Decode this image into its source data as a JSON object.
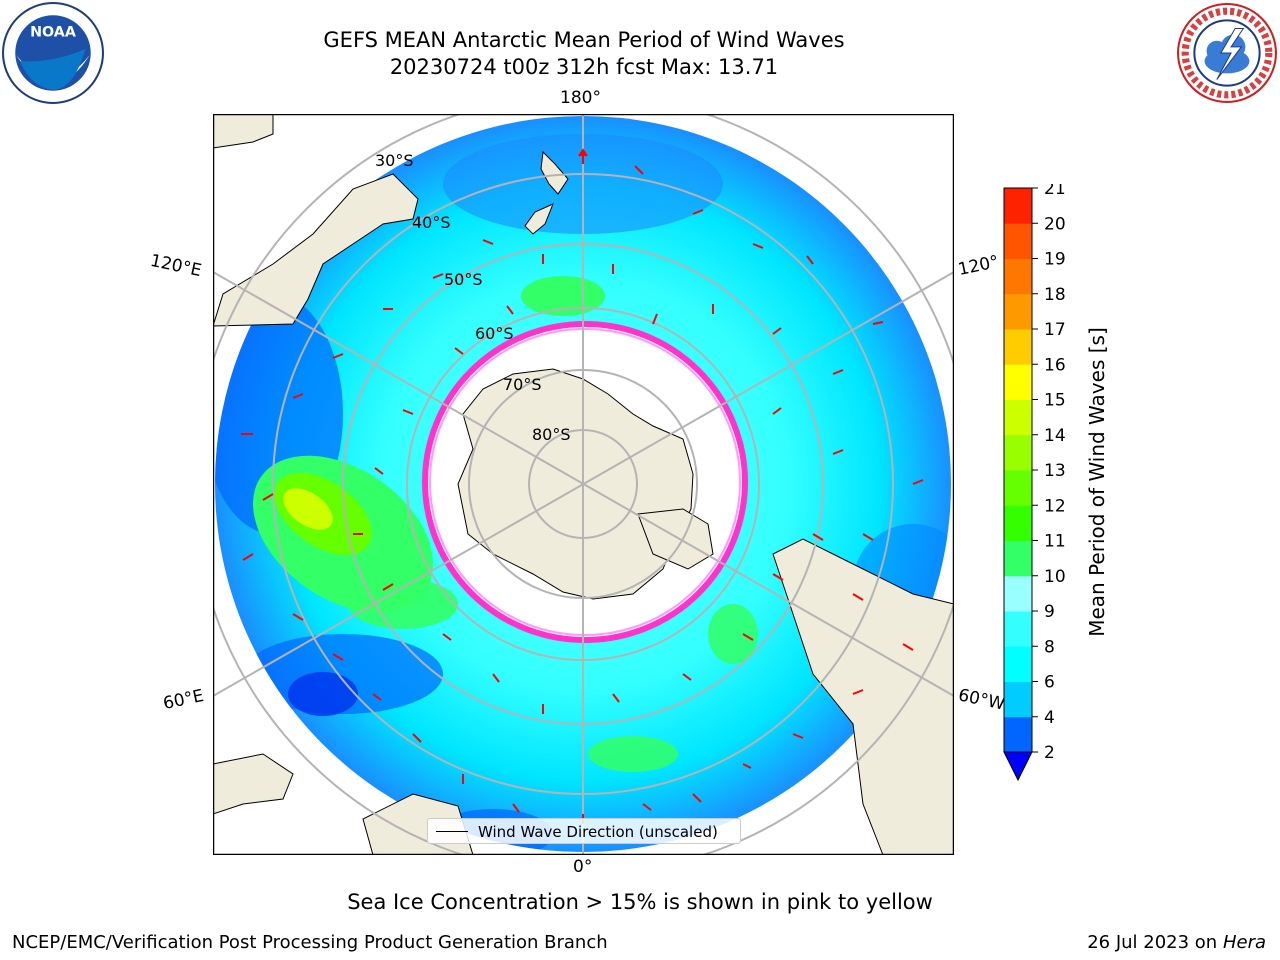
{
  "title": {
    "line1": "GEFS MEAN Antarctic Mean Period of Wind Waves",
    "line2": "20230724 t00z 312h fcst   Max: 13.71"
  },
  "map": {
    "projection": "south-polar-stereographic",
    "meridian_labels": {
      "top": "180°",
      "upper_left": "120°E",
      "upper_right": "120°",
      "lower_left": "60°E",
      "lower_right": "60°W",
      "bottom": "0°"
    },
    "parallel_labels": [
      "30°S",
      "40°S",
      "50°S",
      "60°S",
      "70°S",
      "80°S"
    ],
    "legend_label": "Wind Wave Direction (unscaled)",
    "colors": {
      "land": "#efecdc",
      "sea_ice_no_data": "#ffffff",
      "sea_ice_edge": "#ff33cc",
      "arrows": "#ff0000",
      "gridlines": "#b4b4b4"
    }
  },
  "colorbar": {
    "label": "Mean Period of Wind Waves [s]",
    "ticks": [
      "2",
      "4",
      "6",
      "8",
      "9",
      "10",
      "11",
      "12",
      "13",
      "14",
      "15",
      "16",
      "17",
      "18",
      "19",
      "20",
      "21"
    ],
    "colors": [
      "#0066ff",
      "#00ccff",
      "#00ffff",
      "#33ffff",
      "#99ffff",
      "#33ff66",
      "#33ff00",
      "#66ff00",
      "#99ff00",
      "#ccff00",
      "#ffff00",
      "#ffcc00",
      "#ff9900",
      "#ff7700",
      "#ff5500",
      "#ff2200"
    ],
    "extend_min_color": "#0000ff"
  },
  "subtitle": "Sea Ice Concentration > 15% is shown in pink to yellow",
  "footer": {
    "left": "NCEP/EMC/Verification Post Processing Product Generation Branch",
    "right_date": "26 Jul 2023 on ",
    "right_host": "Hera"
  }
}
